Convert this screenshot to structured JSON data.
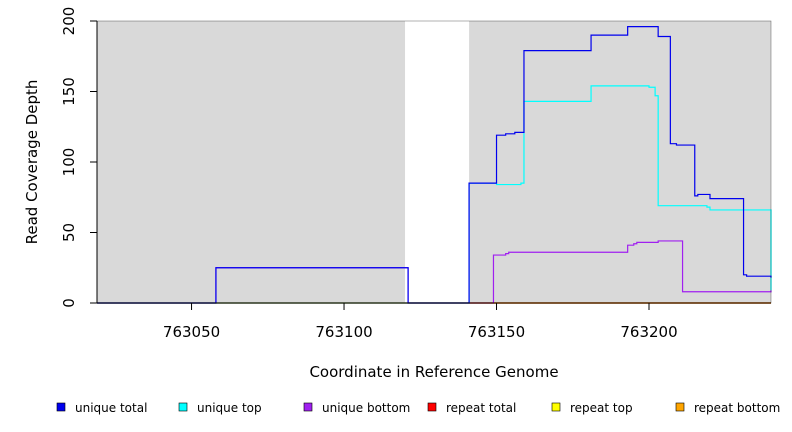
{
  "chart_data": {
    "type": "line",
    "title": "",
    "xlabel": "Coordinate in Reference Genome",
    "ylabel": "Read Coverage Depth",
    "xlim": [
      763019,
      763240
    ],
    "ylim": [
      0,
      200
    ],
    "x_ticks": [
      763050,
      763100,
      763150,
      763200
    ],
    "y_ticks": [
      0,
      50,
      100,
      150,
      200
    ],
    "grid": false,
    "background": "#d9d9d9",
    "gap_regions": [
      [
        763120,
        763141
      ]
    ],
    "legend_position": "bottom",
    "series": [
      {
        "name": "unique total",
        "color": "#0000ee",
        "x": [
          763019,
          763057,
          763058,
          763120,
          763121,
          763140,
          763141,
          763149,
          763150,
          763152,
          763153,
          763155,
          763156,
          763158,
          763159,
          763180,
          763181,
          763192,
          763193,
          763202,
          763203,
          763206,
          763207,
          763209,
          763210,
          763215,
          763216,
          763219,
          763220,
          763231,
          763232,
          763240
        ],
        "y": [
          0,
          0,
          25,
          25,
          0,
          0,
          85,
          85,
          119,
          119,
          120,
          120,
          121,
          121,
          179,
          179,
          190,
          190,
          196,
          196,
          189,
          189,
          113,
          112,
          112,
          76,
          77,
          77,
          74,
          20,
          19,
          18
        ]
      },
      {
        "name": "unique top",
        "color": "#00ffff",
        "x": [
          763019,
          763140,
          763141,
          763149,
          763150,
          763158,
          763159,
          763180,
          763181,
          763200,
          763201,
          763202,
          763203,
          763219,
          763220,
          763240
        ],
        "y": [
          0,
          0,
          85,
          85,
          84,
          85,
          143,
          143,
          154,
          153,
          153,
          147,
          69,
          68,
          66,
          9
        ]
      },
      {
        "name": "unique bottom",
        "color": "#a020f0",
        "x": [
          763019,
          763057,
          763058,
          763120,
          763121,
          763148,
          763149,
          763153,
          763154,
          763192,
          763193,
          763195,
          763196,
          763202,
          763203,
          763210,
          763211,
          763240
        ],
        "y": [
          0,
          0,
          25,
          25,
          0,
          0,
          34,
          35,
          36,
          36,
          41,
          42,
          43,
          43,
          44,
          44,
          8,
          9
        ]
      },
      {
        "name": "repeat total",
        "color": "#ff0000",
        "x": [
          763019,
          763240
        ],
        "y": [
          0,
          0
        ]
      },
      {
        "name": "repeat top",
        "color": "#ffff00",
        "x": [
          763019,
          763240
        ],
        "y": [
          0,
          0
        ]
      },
      {
        "name": "repeat bottom",
        "color": "#ffa500",
        "x": [
          763141,
          763240
        ],
        "y": [
          0,
          0
        ]
      }
    ]
  }
}
